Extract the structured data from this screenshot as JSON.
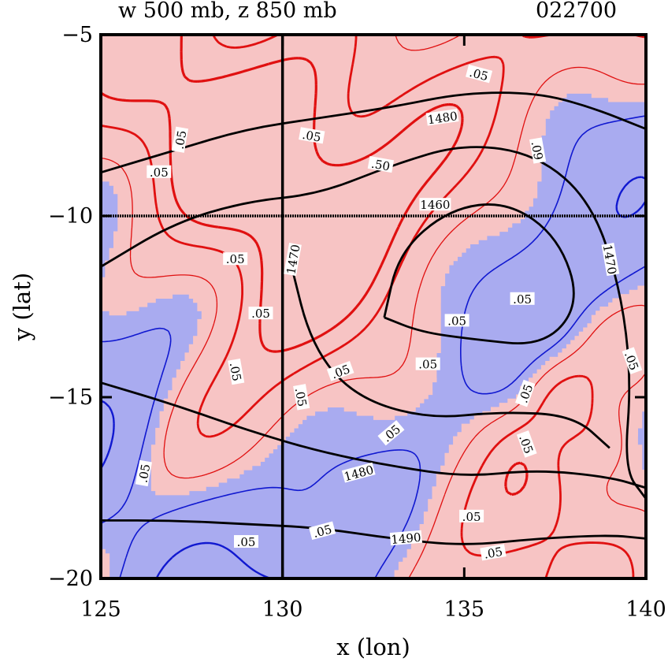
{
  "chart_data": {
    "type": "contour",
    "title": "w 500 mb, z 850 mb",
    "time_label": "022700",
    "xlabel": "x (lon)",
    "ylabel": "y (lat)",
    "xlim": [
      125,
      140
    ],
    "ylim": [
      -20,
      -5
    ],
    "xticks": [
      125,
      130,
      135,
      140
    ],
    "yticks": [
      -5,
      -10,
      -15,
      -20
    ],
    "xtick_labels": [
      "125",
      "130",
      "135",
      "140"
    ],
    "ytick_labels": [
      "−5",
      "−10",
      "−15",
      "−20"
    ],
    "colors": {
      "positive_fill": "#f7c4c4",
      "negative_fill": "#a9abf0",
      "positive_contour": "#e01010",
      "negative_contour": "#1018d0",
      "height_contour": "#000000"
    },
    "reference_lines": [
      {
        "axis": "x",
        "value": 130
      },
      {
        "axis": "y",
        "value": -10
      }
    ],
    "height_contours": [
      {
        "level": "1460",
        "points": [
          [
            132.8,
            -12.8
          ],
          [
            133.2,
            -11.0
          ],
          [
            134.6,
            -9.8
          ],
          [
            136.2,
            -9.6
          ],
          [
            137.6,
            -10.6
          ],
          [
            138.2,
            -12.4
          ],
          [
            137.2,
            -13.6
          ],
          [
            135.2,
            -13.4
          ],
          [
            133.8,
            -13.2
          ],
          [
            132.8,
            -12.8
          ]
        ]
      },
      {
        "level": "1470",
        "points": [
          [
            125,
            -11.4
          ],
          [
            127,
            -10.2
          ],
          [
            129,
            -9.6
          ],
          [
            131,
            -9.4
          ],
          [
            133,
            -8.6
          ],
          [
            135,
            -8.0
          ],
          [
            137,
            -8.3
          ],
          [
            138.5,
            -9.6
          ],
          [
            139.3,
            -12.0
          ],
          [
            139.6,
            -14.5
          ],
          [
            139.4,
            -17.0
          ],
          [
            140,
            -17.8
          ]
        ]
      },
      {
        "level": "1470",
        "points": [
          [
            130.2,
            -11.2
          ],
          [
            130.8,
            -13.6
          ],
          [
            132.0,
            -15.0
          ],
          [
            134.0,
            -15.6
          ],
          [
            136.0,
            -15.4
          ],
          [
            138.0,
            -15.5
          ],
          [
            139.0,
            -16.4
          ]
        ]
      },
      {
        "level": "1480",
        "points": [
          [
            125,
            -8.8
          ],
          [
            127,
            -8.2
          ],
          [
            129,
            -7.6
          ],
          [
            131,
            -7.3
          ],
          [
            133,
            -7.0
          ],
          [
            135,
            -6.6
          ],
          [
            137,
            -6.6
          ],
          [
            138.5,
            -7.0
          ],
          [
            140,
            -7.6
          ]
        ]
      },
      {
        "level": "1480",
        "points": [
          [
            125,
            -14.6
          ],
          [
            127,
            -15.2
          ],
          [
            129,
            -15.9
          ],
          [
            131,
            -16.5
          ],
          [
            133,
            -16.9
          ],
          [
            135,
            -17.2
          ],
          [
            137,
            -17.0
          ],
          [
            139,
            -17.2
          ],
          [
            140,
            -17.5
          ]
        ]
      },
      {
        "level": "1490",
        "points": [
          [
            125,
            -18.4
          ],
          [
            127,
            -18.4
          ],
          [
            129,
            -18.5
          ],
          [
            131,
            -18.6
          ],
          [
            133,
            -18.9
          ],
          [
            135,
            -19.1
          ],
          [
            137,
            -18.9
          ],
          [
            139,
            -18.8
          ],
          [
            140,
            -18.9
          ]
        ]
      }
    ],
    "contour_labels": [
      {
        "text": ".05",
        "x": 135.4,
        "y": -6.1,
        "rot": 15
      },
      {
        "text": "1480",
        "x": 134.4,
        "y": -7.3,
        "rot": -8
      },
      {
        "text": ".05",
        "x": 130.8,
        "y": -7.8,
        "rot": 10
      },
      {
        "text": ".05",
        "x": 127.2,
        "y": -7.9,
        "rot": -80
      },
      {
        "text": ".05",
        "x": 126.6,
        "y": -8.8,
        "rot": 0
      },
      {
        "text": ".50",
        "x": 132.7,
        "y": -8.6,
        "rot": 10
      },
      {
        "text": ".09",
        "x": 137.0,
        "y": -8.2,
        "rot": 80
      },
      {
        "text": "1460",
        "x": 134.2,
        "y": -9.7,
        "rot": 0
      },
      {
        "text": ".05",
        "x": 128.7,
        "y": -11.2,
        "rot": 0
      },
      {
        "text": "1470",
        "x": 130.3,
        "y": -11.2,
        "rot": -80
      },
      {
        "text": "1470",
        "x": 139.0,
        "y": -11.2,
        "rot": 80
      },
      {
        "text": ".05",
        "x": 129.4,
        "y": -12.7,
        "rot": 0
      },
      {
        "text": ".05",
        "x": 134.8,
        "y": -12.9,
        "rot": 0
      },
      {
        "text": ".05",
        "x": 136.6,
        "y": -12.3,
        "rot": 0
      },
      {
        "text": ".05",
        "x": 128.7,
        "y": -14.3,
        "rot": 80
      },
      {
        "text": ".05",
        "x": 131.6,
        "y": -14.3,
        "rot": -20
      },
      {
        "text": ".05",
        "x": 134.0,
        "y": -14.1,
        "rot": 0
      },
      {
        "text": ".05",
        "x": 130.5,
        "y": -15.0,
        "rot": 80
      },
      {
        "text": ".05",
        "x": 136.7,
        "y": -14.9,
        "rot": -70
      },
      {
        "text": ".05",
        "x": 139.6,
        "y": -14.0,
        "rot": 70
      },
      {
        "text": ".05",
        "x": 133.0,
        "y": -16.0,
        "rot": -40
      },
      {
        "text": ".05",
        "x": 136.7,
        "y": -16.3,
        "rot": 70
      },
      {
        "text": ".05",
        "x": 126.2,
        "y": -17.1,
        "rot": -80
      },
      {
        "text": "1480",
        "x": 132.1,
        "y": -17.1,
        "rot": -15
      },
      {
        "text": ".05",
        "x": 135.2,
        "y": -18.3,
        "rot": 0
      },
      {
        "text": ".05",
        "x": 131.1,
        "y": -18.7,
        "rot": -15
      },
      {
        "text": "1490",
        "x": 133.4,
        "y": -18.9,
        "rot": -5
      },
      {
        "text": ".05",
        "x": 129.0,
        "y": -19.0,
        "rot": 0
      },
      {
        "text": ".05",
        "x": 135.8,
        "y": -19.3,
        "rot": -10
      }
    ],
    "w_contour_interval": 0.05
  }
}
